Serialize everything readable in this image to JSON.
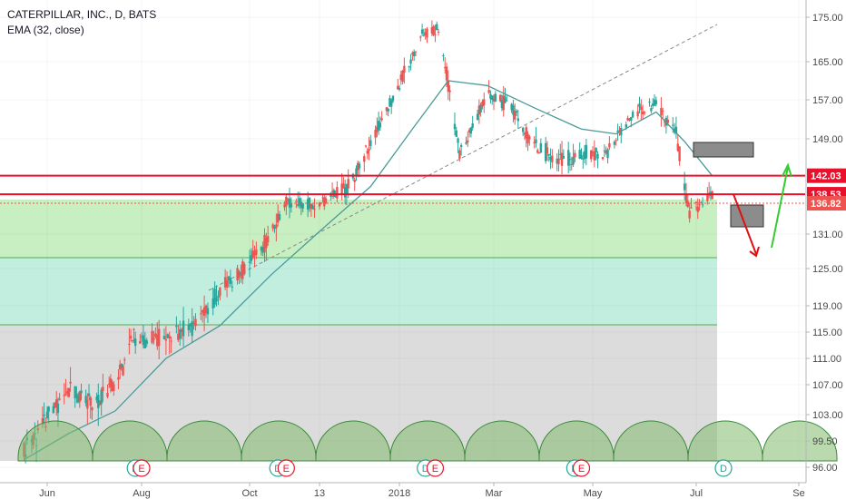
{
  "chart_data": {
    "type": "candlestick",
    "symbol_title": "CATERPILLAR, INC., D, BATS",
    "indicator_label": "EMA (32, close)",
    "ylim": [
      95,
      177
    ],
    "y_ticks": [
      175.0,
      165.0,
      157.0,
      149.0,
      131.0,
      125.0,
      119.0,
      115.0,
      111.0,
      107.0,
      103.0,
      99.5,
      96.0
    ],
    "y_tick_labels": [
      "175.00",
      "165.00",
      "157.00",
      "149.00",
      "131.00",
      "125.00",
      "119.00",
      "115.00",
      "111.00",
      "107.00",
      "103.00",
      "99.50",
      "96.00"
    ],
    "x_ticks": [
      {
        "label": "Jun",
        "date": "2017-06-01"
      },
      {
        "label": "Aug",
        "date": "2017-08-01"
      },
      {
        "label": "Oct",
        "date": "2017-10-02"
      },
      {
        "label": "13",
        "date": "2017-11-13"
      },
      {
        "label": "2018",
        "date": "2018-01-02"
      },
      {
        "label": "Mar",
        "date": "2018-03-01"
      },
      {
        "label": "May",
        "date": "2018-05-01"
      },
      {
        "label": "Jul",
        "date": "2018-07-02"
      },
      {
        "label": "Se",
        "date": "2018-09-04"
      }
    ],
    "series": [
      {
        "name": "price",
        "points": [
          {
            "date": "2017-05-17",
            "close": 98.0
          },
          {
            "date": "2017-06-01",
            "close": 102.5
          },
          {
            "date": "2017-06-15",
            "close": 106.0
          },
          {
            "date": "2017-07-01",
            "close": 104.5
          },
          {
            "date": "2017-07-15",
            "close": 107.0
          },
          {
            "date": "2017-07-25",
            "close": 113.5
          },
          {
            "date": "2017-08-15",
            "close": 114.5
          },
          {
            "date": "2017-09-01",
            "close": 116.0
          },
          {
            "date": "2017-09-15",
            "close": 121.5
          },
          {
            "date": "2017-10-01",
            "close": 125.5
          },
          {
            "date": "2017-10-15",
            "close": 131.0
          },
          {
            "date": "2017-10-24",
            "close": 137.0
          },
          {
            "date": "2017-11-13",
            "close": 136.5
          },
          {
            "date": "2017-12-01",
            "close": 140.0
          },
          {
            "date": "2017-12-15",
            "close": 148.0
          },
          {
            "date": "2018-01-02",
            "close": 160.0
          },
          {
            "date": "2018-01-16",
            "close": 171.0
          },
          {
            "date": "2018-01-26",
            "close": 172.5
          },
          {
            "date": "2018-02-08",
            "close": 146.0
          },
          {
            "date": "2018-02-25",
            "close": 158.0
          },
          {
            "date": "2018-03-10",
            "close": 156.0
          },
          {
            "date": "2018-03-25",
            "close": 148.0
          },
          {
            "date": "2018-04-10",
            "close": 145.0
          },
          {
            "date": "2018-04-24",
            "close": 146.0
          },
          {
            "date": "2018-05-10",
            "close": 146.5
          },
          {
            "date": "2018-05-25",
            "close": 154.0
          },
          {
            "date": "2018-06-08",
            "close": 156.0
          },
          {
            "date": "2018-06-20",
            "close": 150.0
          },
          {
            "date": "2018-06-28",
            "close": 134.5
          },
          {
            "date": "2018-07-03",
            "close": 136.0
          },
          {
            "date": "2018-07-12",
            "close": 138.5
          }
        ]
      },
      {
        "name": "EMA (32, close)",
        "points": [
          {
            "date": "2017-05-17",
            "close": 97.0
          },
          {
            "date": "2017-06-15",
            "close": 100.5
          },
          {
            "date": "2017-07-15",
            "close": 103.5
          },
          {
            "date": "2017-08-15",
            "close": 111.0
          },
          {
            "date": "2017-09-15",
            "close": 116.0
          },
          {
            "date": "2017-10-15",
            "close": 124.0
          },
          {
            "date": "2017-11-13",
            "close": 131.5
          },
          {
            "date": "2017-12-15",
            "close": 140.0
          },
          {
            "date": "2018-01-10",
            "close": 151.0
          },
          {
            "date": "2018-02-01",
            "close": 161.0
          },
          {
            "date": "2018-02-25",
            "close": 160.0
          },
          {
            "date": "2018-03-25",
            "close": 155.5
          },
          {
            "date": "2018-04-24",
            "close": 151.0
          },
          {
            "date": "2018-05-15",
            "close": 150.0
          },
          {
            "date": "2018-06-08",
            "close": 154.5
          },
          {
            "date": "2018-06-25",
            "close": 148.5
          },
          {
            "date": "2018-07-12",
            "close": 142.0
          }
        ]
      }
    ],
    "price_tags": [
      {
        "value": 142.03,
        "label": "142.03",
        "color": "#e8102a"
      },
      {
        "value": 138.53,
        "label": "138.53",
        "color": "#e8102a"
      },
      {
        "value": 136.82,
        "label": "136.82",
        "color": "#ef5350"
      }
    ],
    "events": [
      {
        "letter": "D",
        "date": "2017-07-28",
        "color": "#26a69a"
      },
      {
        "letter": "E",
        "date": "2017-08-01",
        "color": "#e8102a"
      },
      {
        "letter": "D",
        "date": "2017-10-19",
        "color": "#26a69a"
      },
      {
        "letter": "E",
        "date": "2017-10-24",
        "color": "#e8102a"
      },
      {
        "letter": "D",
        "date": "2018-01-18",
        "color": "#26a69a"
      },
      {
        "letter": "E",
        "date": "2018-01-24",
        "color": "#e8102a"
      },
      {
        "letter": "D",
        "date": "2018-04-20",
        "color": "#26a69a"
      },
      {
        "letter": "E",
        "date": "2018-04-24",
        "color": "#e8102a"
      },
      {
        "letter": "D",
        "date": "2018-07-19",
        "color": "#26a69a"
      }
    ],
    "colors": {
      "up": "#26a69a",
      "down": "#ef5350",
      "ema": "#4a9a98",
      "support": "#e8102a",
      "zone_upper": "#c8efc2",
      "zone_middle": "#c2eee0",
      "zone_lower": "#dcdcdc",
      "arrow_up": "#33cc33",
      "arrow_down": "#dd1111"
    }
  }
}
